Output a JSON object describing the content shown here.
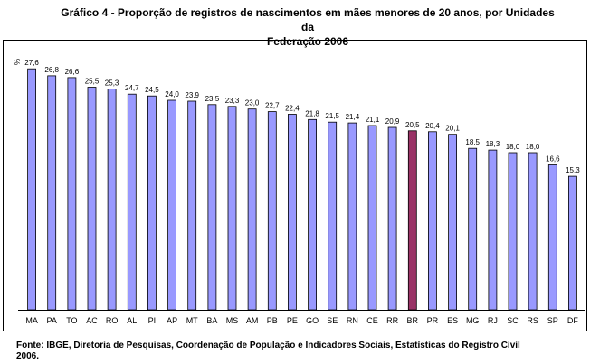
{
  "title_line1": "Gráfico 4 - Proporção de registros de nascimentos em mães menores de 20 anos, por Unidades da",
  "title_line2": "Federação 2006",
  "source_line1": "Fonte: IBGE, Diretoria de Pesquisas, Coordenação de População e Indicadores Sociais, Estatísticas do Registro Civil",
  "source_line2": "2006.",
  "colors": {
    "bar": "#9999ff",
    "highlight": "#993366",
    "axis": "#000000"
  },
  "chart_data": {
    "type": "bar",
    "ylabel": "%",
    "ylim": [
      0,
      30
    ],
    "grid": false,
    "legend": "none",
    "categories": [
      "MA",
      "PA",
      "TO",
      "AC",
      "RO",
      "AL",
      "PI",
      "AP",
      "MT",
      "BA",
      "MS",
      "AM",
      "PB",
      "PE",
      "GO",
      "SE",
      "RN",
      "CE",
      "RR",
      "BR",
      "PR",
      "ES",
      "MG",
      "RJ",
      "SC",
      "RS",
      "SP",
      "DF"
    ],
    "value_labels": [
      "27,6",
      "26,8",
      "26,6",
      "25,5",
      "25,3",
      "24,7",
      "24,5",
      "24,0",
      "23,9",
      "23,5",
      "23,3",
      "23,0",
      "22,7",
      "22,4",
      "21,8",
      "21,5",
      "21,4",
      "21,1",
      "20,9",
      "20,5",
      "20,4",
      "20,1",
      "18,5",
      "18,3",
      "18,0",
      "18,0",
      "16,6",
      "15,3"
    ],
    "values": [
      27.6,
      26.8,
      26.6,
      25.5,
      25.3,
      24.7,
      24.5,
      24.0,
      23.9,
      23.5,
      23.3,
      23.0,
      22.7,
      22.4,
      21.8,
      21.5,
      21.4,
      21.1,
      20.9,
      20.5,
      20.4,
      20.1,
      18.5,
      18.3,
      18.0,
      18.0,
      16.6,
      15.3
    ],
    "highlight_category": "BR"
  }
}
